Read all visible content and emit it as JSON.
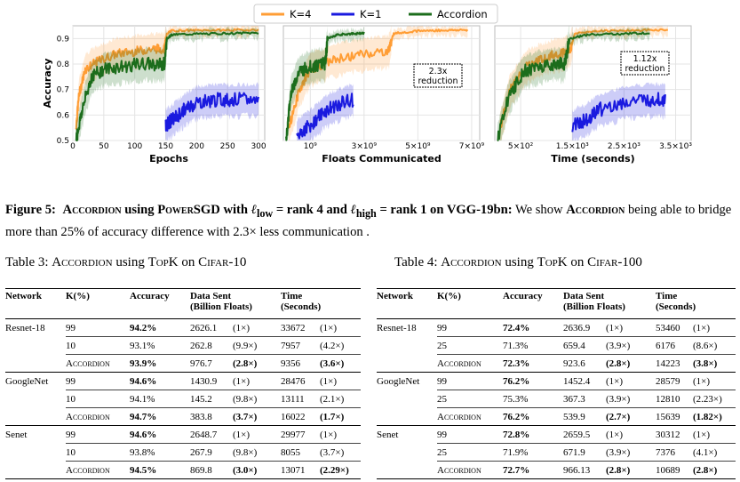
{
  "legend": [
    {
      "label": "K=4",
      "color": "#ff9d35"
    },
    {
      "label": "K=1",
      "color": "#1a1adf"
    },
    {
      "label": "Accordion",
      "color": "#1c6d1c"
    }
  ],
  "chart_data": [
    {
      "type": "line",
      "xlabel": "Epochs",
      "ylabel": "Accuracy",
      "xlim": [
        0,
        310
      ],
      "ylim": [
        0.5,
        0.95
      ],
      "x_ticks": [
        "0",
        "50",
        "100",
        "150",
        "200",
        "250",
        "300"
      ],
      "y_ticks": [
        "0.5",
        "0.6",
        "0.7",
        "0.8",
        "0.9"
      ],
      "annotation": "",
      "series": [
        {
          "name": "K=4",
          "x": [
            5,
            10,
            20,
            40,
            70,
            100,
            130,
            148,
            152,
            160,
            200,
            250,
            300
          ],
          "y": [
            0.55,
            0.68,
            0.78,
            0.81,
            0.84,
            0.85,
            0.86,
            0.86,
            0.92,
            0.931,
            0.932,
            0.933,
            0.934
          ]
        },
        {
          "name": "K=1",
          "x": [
            150,
            160,
            180,
            200,
            230,
            260,
            300
          ],
          "y": [
            0.56,
            0.58,
            0.62,
            0.65,
            0.66,
            0.66,
            0.66
          ]
        },
        {
          "name": "Accordion",
          "x": [
            5,
            15,
            30,
            50,
            80,
            110,
            140,
            148,
            152,
            160,
            200,
            250,
            300
          ],
          "y": [
            0.5,
            0.62,
            0.75,
            0.78,
            0.79,
            0.8,
            0.8,
            0.8,
            0.9,
            0.915,
            0.918,
            0.92,
            0.922
          ]
        }
      ]
    },
    {
      "type": "line",
      "xlabel": "Floats Communicated",
      "ylabel": "",
      "xlim": [
        0,
        7300000000.0
      ],
      "ylim": [
        0.5,
        0.95
      ],
      "x_ticks": [
        "10⁹",
        "3×10⁹",
        "5×10⁹",
        "7×10⁹"
      ],
      "y_ticks": [],
      "annotation": "2.3x reduction",
      "series": [
        {
          "name": "K=4",
          "x": [
            200000000.0,
            600000000.0,
            1000000000.0,
            2000000000.0,
            3000000000.0,
            3900000000.0,
            4100000000.0,
            5000000000.0,
            6000000000.0,
            6850000000.0
          ],
          "y": [
            0.55,
            0.7,
            0.78,
            0.82,
            0.84,
            0.85,
            0.92,
            0.93,
            0.932,
            0.934
          ]
        },
        {
          "name": "K=1",
          "x": [
            500000000.0,
            1000000000.0,
            1500000000.0,
            2000000000.0,
            2600000000.0
          ],
          "y": [
            0.52,
            0.56,
            0.61,
            0.64,
            0.66
          ]
        },
        {
          "name": "Accordion",
          "x": [
            100000000.0,
            300000000.0,
            600000000.0,
            1000000000.0,
            1400000000.0,
            1550000000.0,
            1650000000.0,
            2000000000.0,
            2500000000.0,
            3000000000.0
          ],
          "y": [
            0.5,
            0.7,
            0.77,
            0.79,
            0.8,
            0.8,
            0.9,
            0.915,
            0.918,
            0.922
          ]
        }
      ]
    },
    {
      "type": "line",
      "xlabel": "Time (seconds)",
      "ylabel": "",
      "xlim": [
        0,
        3800
      ],
      "ylim": [
        0.5,
        0.95
      ],
      "x_ticks": [
        "5×10²",
        "1.5×10³",
        "2.5×10³",
        "3.5×10³"
      ],
      "y_ticks": [],
      "annotation": "1.12x reduction",
      "series": [
        {
          "name": "K=4",
          "x": [
            100,
            300,
            600,
            900,
            1200,
            1450,
            1550,
            2000,
            2700,
            3350
          ],
          "y": [
            0.55,
            0.7,
            0.79,
            0.82,
            0.84,
            0.85,
            0.92,
            0.93,
            0.932,
            0.934
          ]
        },
        {
          "name": "K=1",
          "x": [
            1500,
            1750,
            2000,
            2500,
            3000,
            3300
          ],
          "y": [
            0.56,
            0.58,
            0.62,
            0.65,
            0.66,
            0.66
          ]
        },
        {
          "name": "Accordion",
          "x": [
            50,
            250,
            550,
            850,
            1150,
            1350,
            1450,
            1800,
            2400,
            3000
          ],
          "y": [
            0.5,
            0.66,
            0.77,
            0.79,
            0.8,
            0.8,
            0.9,
            0.915,
            0.918,
            0.922
          ]
        }
      ]
    }
  ],
  "caption": {
    "label": "Figure 5:",
    "sc1": "Accordion",
    "t1": " using ",
    "sc2": "PowerSGD",
    "t2": " with ",
    "math1": "ℓ",
    "sub1": "low",
    "t3": " = rank 4 and ",
    "math2": "ℓ",
    "sub2": "high",
    "t4": " = rank 1 on VGG-19bn:",
    "t5": " We show ",
    "sc3": "Accordion",
    "t6": " being able to bridge more than 25% of accuracy difference with 2.3× less communication ."
  },
  "table3": {
    "cap_label": "Table 3:",
    "cap_sc1": "Accordion",
    "cap_t1": " using ",
    "cap_sc2": "TopK",
    "cap_t2": " on ",
    "cap_sc3": "Cifar-10",
    "headers": {
      "network": "Network",
      "k": "K(%)",
      "acc": "Accuracy",
      "sent1": "Data Sent",
      "sent2": "(Billion Floats)",
      "time1": "Time",
      "time2": "(Seconds)"
    },
    "groups": [
      {
        "network": "Resnet-18",
        "rows": [
          {
            "k": "99",
            "acc": "94.2%",
            "acc_b": true,
            "sent": "2626.1",
            "sentx": "(1×)",
            "sentx_b": false,
            "time": "33672",
            "timex": "(1×)",
            "timex_b": false
          },
          {
            "k": "10",
            "acc": "93.1%",
            "acc_b": false,
            "sent": "262.8",
            "sentx": "(9.9×)",
            "sentx_b": false,
            "time": "7957",
            "timex": "(4.2×)",
            "timex_b": false
          },
          {
            "k": "Accordion",
            "acc": "93.9%",
            "acc_b": true,
            "sent": "976.7",
            "sentx": "(2.8×)",
            "sentx_b": true,
            "time": "9356",
            "timex": "(3.6×)",
            "timex_b": true
          }
        ]
      },
      {
        "network": "GoogleNet",
        "rows": [
          {
            "k": "99",
            "acc": "94.6%",
            "acc_b": true,
            "sent": "1430.9",
            "sentx": "(1×)",
            "sentx_b": false,
            "time": "28476",
            "timex": "(1×)",
            "timex_b": false
          },
          {
            "k": "10",
            "acc": "94.1%",
            "acc_b": false,
            "sent": "145.2",
            "sentx": "(9.8×)",
            "sentx_b": false,
            "time": "13111",
            "timex": "(2.1×)",
            "timex_b": false
          },
          {
            "k": "Accordion",
            "acc": "94.7%",
            "acc_b": true,
            "sent": "383.8",
            "sentx": "(3.7×)",
            "sentx_b": true,
            "time": "16022",
            "timex": "(1.7×)",
            "timex_b": true
          }
        ]
      },
      {
        "network": "Senet",
        "rows": [
          {
            "k": "99",
            "acc": "94.6%",
            "acc_b": true,
            "sent": "2648.7",
            "sentx": "(1×)",
            "sentx_b": false,
            "time": "29977",
            "timex": "(1×)",
            "timex_b": false
          },
          {
            "k": "10",
            "acc": "93.8%",
            "acc_b": false,
            "sent": "267.9",
            "sentx": "(9.8×)",
            "sentx_b": false,
            "time": "8055",
            "timex": "(3.7×)",
            "timex_b": false
          },
          {
            "k": "Accordion",
            "acc": "94.5%",
            "acc_b": true,
            "sent": "869.8",
            "sentx": "(3.0×)",
            "sentx_b": true,
            "time": "13071",
            "timex": "(2.29×)",
            "timex_b": true
          }
        ]
      }
    ]
  },
  "table4": {
    "cap_label": "Table 4:",
    "cap_sc1": "Accordion",
    "cap_t1": " using ",
    "cap_sc2": "TopK",
    "cap_t2": " on ",
    "cap_sc3": "Cifar-100",
    "headers": {
      "network": "Network",
      "k": "K(%)",
      "acc": "Accuracy",
      "sent1": "Data Sent",
      "sent2": "(Billion Floats)",
      "time1": "Time",
      "time2": "(Seconds)"
    },
    "groups": [
      {
        "network": "Resnet-18",
        "rows": [
          {
            "k": "99",
            "acc": "72.4%",
            "acc_b": true,
            "sent": "2636.9",
            "sentx": "(1×)",
            "sentx_b": false,
            "time": "53460",
            "timex": "(1×)",
            "timex_b": false
          },
          {
            "k": "25",
            "acc": "71.3%",
            "acc_b": false,
            "sent": "659.4",
            "sentx": "(3.9×)",
            "sentx_b": false,
            "time": "6176",
            "timex": "(8.6×)",
            "timex_b": false
          },
          {
            "k": "Accordion",
            "acc": "72.3%",
            "acc_b": true,
            "sent": "923.6",
            "sentx": "(2.8×)",
            "sentx_b": true,
            "time": "14223",
            "timex": "(3.8×)",
            "timex_b": true
          }
        ]
      },
      {
        "network": "GoogleNet",
        "rows": [
          {
            "k": "99",
            "acc": "76.2%",
            "acc_b": true,
            "sent": "1452.4",
            "sentx": "(1×)",
            "sentx_b": false,
            "time": "28579",
            "timex": "(1×)",
            "timex_b": false
          },
          {
            "k": "25",
            "acc": "75.3%",
            "acc_b": false,
            "sent": "367.3",
            "sentx": "(3.9×)",
            "sentx_b": false,
            "time": "12810",
            "timex": "(2.23×)",
            "timex_b": false
          },
          {
            "k": "Accordion",
            "acc": "76.2%",
            "acc_b": true,
            "sent": "539.9",
            "sentx": "(2.7×)",
            "sentx_b": true,
            "time": "15639",
            "timex": "(1.82×)",
            "timex_b": true
          }
        ]
      },
      {
        "network": "Senet",
        "rows": [
          {
            "k": "99",
            "acc": "72.8%",
            "acc_b": true,
            "sent": "2659.5",
            "sentx": "(1×)",
            "sentx_b": false,
            "time": "30312",
            "timex": "(1×)",
            "timex_b": false
          },
          {
            "k": "25",
            "acc": "71.9%",
            "acc_b": false,
            "sent": "671.9",
            "sentx": "(3.9×)",
            "sentx_b": false,
            "time": "7376",
            "timex": "(4.1×)",
            "timex_b": false
          },
          {
            "k": "Accordion",
            "acc": "72.7%",
            "acc_b": true,
            "sent": "966.13",
            "sentx": "(2.8×)",
            "sentx_b": true,
            "time": "10689",
            "timex": "(2.8×)",
            "timex_b": true
          }
        ]
      }
    ]
  }
}
